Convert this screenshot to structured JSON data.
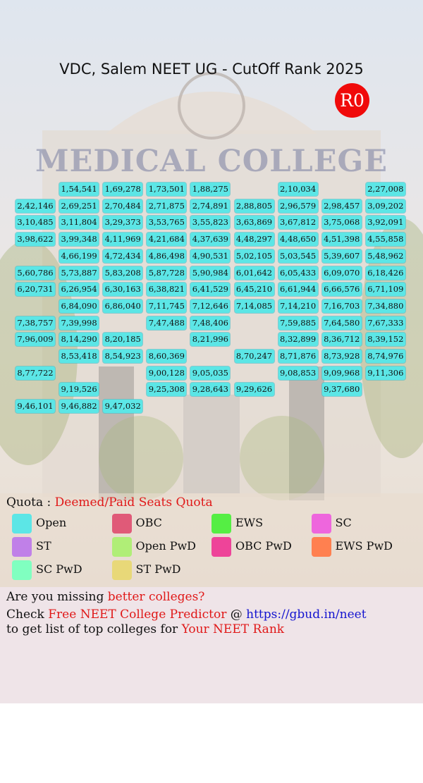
{
  "header": {
    "title": "VDC, Salem NEET UG - CutOff Rank 2025",
    "badge": "R0",
    "background_sign": "MEDICAL COLLEGE"
  },
  "table": {
    "rows": [
      [
        null,
        "1,54,541",
        "1,69,278",
        "1,73,501",
        "1,88,275",
        null,
        "2,10,034",
        null,
        "2,27,008"
      ],
      [
        "2,42,146",
        "2,69,251",
        "2,70,484",
        "2,71,875",
        "2,74,891",
        "2,88,805",
        "2,96,579",
        "2,98,457",
        "3,09,202"
      ],
      [
        "3,10,485",
        "3,11,804",
        "3,29,373",
        "3,53,765",
        "3,55,823",
        "3,63,869",
        "3,67,812",
        "3,75,068",
        "3,92,091"
      ],
      [
        "3,98,622",
        "3,99,348",
        "4,11,969",
        "4,21,684",
        "4,37,639",
        "4,48,297",
        "4,48,650",
        "4,51,398",
        "4,55,858"
      ],
      [
        null,
        "4,66,199",
        "4,72,434",
        "4,86,498",
        "4,90,531",
        "5,02,105",
        "5,03,545",
        "5,39,607",
        "5,48,962"
      ],
      [
        "5,60,786",
        "5,73,887",
        "5,83,208",
        "5,87,728",
        "5,90,984",
        "6,01,642",
        "6,05,433",
        "6,09,070",
        "6,18,426"
      ],
      [
        "6,20,731",
        "6,26,954",
        "6,30,163",
        "6,38,821",
        "6,41,529",
        "6,45,210",
        "6,61,944",
        "6,66,576",
        "6,71,109"
      ],
      [
        null,
        "6,84,090",
        "6,86,040",
        "7,11,745",
        "7,12,646",
        "7,14,085",
        "7,14,210",
        "7,16,703",
        "7,34,880"
      ],
      [
        "7,38,757",
        "7,39,998",
        null,
        "7,47,488",
        "7,48,406",
        null,
        "7,59,885",
        "7,64,580",
        "7,67,333"
      ],
      [
        "7,96,009",
        "8,14,290",
        "8,20,185",
        null,
        "8,21,996",
        null,
        "8,32,899",
        "8,36,712",
        "8,39,152"
      ],
      [
        null,
        "8,53,418",
        "8,54,923",
        "8,60,369",
        null,
        "8,70,247",
        "8,71,876",
        "8,73,928",
        "8,74,976"
      ],
      [
        "8,77,722",
        null,
        null,
        "9,00,128",
        "9,05,035",
        null,
        "9,08,853",
        "9,09,968",
        "9,11,306"
      ],
      [
        null,
        "9,19,526",
        null,
        "9,25,308",
        "9,28,643",
        "9,29,626",
        null,
        "9,37,680",
        null
      ],
      [
        "9,46,101",
        "9,46,882",
        "9,47,032",
        null,
        null,
        null,
        null,
        null,
        null
      ]
    ]
  },
  "legend": {
    "label": "Quota :",
    "quota": "Deemed/Paid Seats Quota",
    "items": [
      {
        "name": "Open",
        "color": "#5ce6e6"
      },
      {
        "name": "OBC",
        "color": "#e05a78"
      },
      {
        "name": "EWS",
        "color": "#55ee44"
      },
      {
        "name": "SC",
        "color": "#ee66dd"
      },
      {
        "name": "ST",
        "color": "#c080e8"
      },
      {
        "name": "Open PwD",
        "color": "#b0ee77"
      },
      {
        "name": "OBC PwD",
        "color": "#ee4499"
      },
      {
        "name": "EWS PwD",
        "color": "#ff8050"
      },
      {
        "name": "SC PwD",
        "color": "#80ffc0"
      },
      {
        "name": "ST PwD",
        "color": "#e8d878"
      }
    ]
  },
  "footer": {
    "line1": [
      "Are you missing ",
      "better colleges?"
    ],
    "line2": [
      "Check ",
      "Free NEET College Predictor",
      " @ ",
      "https://gbud.in/neet"
    ],
    "line3": [
      "to get list of top colleges for ",
      "Your NEET Rank"
    ]
  }
}
